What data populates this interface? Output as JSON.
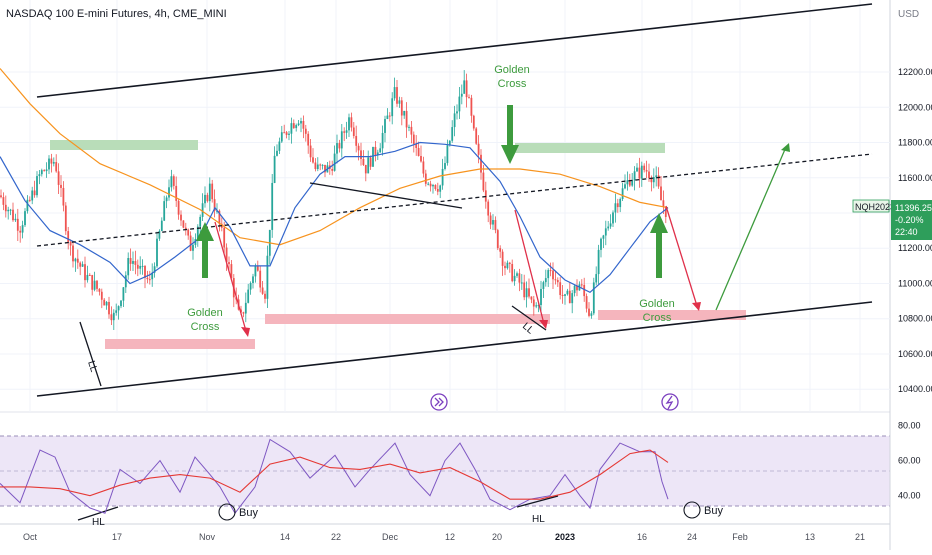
{
  "chart_data": {
    "type": "candlestick",
    "title": "NASDAQ 100 E-mini Futures, 4h, CME_MINI",
    "currency": "USD",
    "symbol": "NQH2023",
    "last_price": "11396.25",
    "change_pct": "-0.20%",
    "countdown": "22:40",
    "price_range": [
      10350,
      12450
    ],
    "price_ticks": [
      10400,
      10600,
      10800,
      11000,
      11200,
      11400,
      11600,
      11800,
      12000,
      12200
    ],
    "price_tick_labels": [
      "10400.00",
      "10600.00",
      "10800.00",
      "11000.00",
      "11200.00",
      "11400.00",
      "11600.00",
      "11800.00",
      "12000.00",
      "12200.00"
    ],
    "x_tick_labels": [
      "Oct",
      "17",
      "Nov",
      "14",
      "22",
      "Dec",
      "12",
      "20",
      "2023",
      "16",
      "24",
      "Feb",
      "13",
      "21"
    ],
    "price_path": [
      [
        0,
        11500
      ],
      [
        20,
        11320
      ],
      [
        40,
        11620
      ],
      [
        55,
        11700
      ],
      [
        70,
        11200
      ],
      [
        85,
        11050
      ],
      [
        100,
        10950
      ],
      [
        115,
        10800
      ],
      [
        130,
        11150
      ],
      [
        150,
        11000
      ],
      [
        170,
        11600
      ],
      [
        190,
        11200
      ],
      [
        210,
        11550
      ],
      [
        225,
        11200
      ],
      [
        240,
        10780
      ],
      [
        255,
        11100
      ],
      [
        265,
        10950
      ],
      [
        275,
        11750
      ],
      [
        290,
        11900
      ],
      [
        300,
        11950
      ],
      [
        315,
        11650
      ],
      [
        330,
        11650
      ],
      [
        350,
        11950
      ],
      [
        365,
        11650
      ],
      [
        380,
        11800
      ],
      [
        395,
        12080
      ],
      [
        410,
        11850
      ],
      [
        425,
        11600
      ],
      [
        440,
        11550
      ],
      [
        455,
        11950
      ],
      [
        465,
        12150
      ],
      [
        475,
        11800
      ],
      [
        490,
        11380
      ],
      [
        505,
        11100
      ],
      [
        520,
        11000
      ],
      [
        535,
        10850
      ],
      [
        550,
        11100
      ],
      [
        565,
        10900
      ],
      [
        580,
        11000
      ],
      [
        590,
        10820
      ],
      [
        600,
        11200
      ],
      [
        615,
        11450
      ],
      [
        630,
        11600
      ],
      [
        645,
        11650
      ],
      [
        655,
        11600
      ],
      [
        662,
        11450
      ],
      [
        668,
        11396
      ]
    ],
    "series": [
      {
        "name": "",
        "color": "#f7931e",
        "points": [
          [
            0,
            12220
          ],
          [
            30,
            12020
          ],
          [
            60,
            11850
          ],
          [
            100,
            11680
          ],
          [
            150,
            11560
          ],
          [
            200,
            11420
          ],
          [
            240,
            11260
          ],
          [
            280,
            11220
          ],
          [
            320,
            11300
          ],
          [
            360,
            11430
          ],
          [
            400,
            11540
          ],
          [
            440,
            11610
          ],
          [
            480,
            11650
          ],
          [
            520,
            11650
          ],
          [
            560,
            11620
          ],
          [
            600,
            11550
          ],
          [
            640,
            11460
          ],
          [
            668,
            11430
          ]
        ]
      },
      {
        "name": "",
        "color": "#3366cc",
        "points": [
          [
            0,
            11720
          ],
          [
            25,
            11470
          ],
          [
            50,
            11300
          ],
          [
            80,
            11220
          ],
          [
            110,
            11120
          ],
          [
            130,
            11000
          ],
          [
            150,
            11050
          ],
          [
            175,
            11150
          ],
          [
            200,
            11260
          ],
          [
            215,
            11430
          ],
          [
            230,
            11320
          ],
          [
            250,
            11100
          ],
          [
            270,
            11100
          ],
          [
            295,
            11430
          ],
          [
            320,
            11620
          ],
          [
            345,
            11720
          ],
          [
            370,
            11720
          ],
          [
            395,
            11750
          ],
          [
            420,
            11800
          ],
          [
            445,
            11790
          ],
          [
            470,
            11770
          ],
          [
            500,
            11580
          ],
          [
            520,
            11380
          ],
          [
            540,
            11150
          ],
          [
            565,
            11020
          ],
          [
            590,
            10950
          ],
          [
            610,
            11050
          ],
          [
            630,
            11200
          ],
          [
            650,
            11350
          ],
          [
            668,
            11430
          ]
        ]
      }
    ],
    "annotations": {
      "golden_cross_1": [
        "Golden",
        "Cross"
      ],
      "golden_cross_2": [
        "Golden",
        "Cross"
      ],
      "golden_cross_3": [
        "Golden",
        "Cross"
      ],
      "ll_1": "LL",
      "ll_2": "LL",
      "hl_1": "HL",
      "hl_2": "HL",
      "buy_1": "Buy",
      "buy_2": "Buy"
    },
    "indicator": {
      "type": "rsi",
      "range": [
        25,
        82
      ],
      "ticks": [
        40,
        60,
        80
      ],
      "tick_labels": [
        "40.00",
        "60.00",
        "80.00"
      ],
      "rsi_path": [
        [
          0,
          47
        ],
        [
          20,
          36
        ],
        [
          40,
          66
        ],
        [
          55,
          62
        ],
        [
          70,
          42
        ],
        [
          90,
          33
        ],
        [
          105,
          30
        ],
        [
          120,
          55
        ],
        [
          140,
          47
        ],
        [
          160,
          60
        ],
        [
          180,
          42
        ],
        [
          195,
          62
        ],
        [
          210,
          52
        ],
        [
          220,
          45
        ],
        [
          235,
          30
        ],
        [
          255,
          45
        ],
        [
          270,
          72
        ],
        [
          290,
          65
        ],
        [
          310,
          50
        ],
        [
          335,
          63
        ],
        [
          355,
          45
        ],
        [
          370,
          55
        ],
        [
          395,
          70
        ],
        [
          410,
          52
        ],
        [
          430,
          40
        ],
        [
          445,
          60
        ],
        [
          460,
          70
        ],
        [
          475,
          55
        ],
        [
          490,
          38
        ],
        [
          510,
          32
        ],
        [
          530,
          38
        ],
        [
          550,
          40
        ],
        [
          565,
          52
        ],
        [
          580,
          40
        ],
        [
          590,
          33
        ],
        [
          600,
          55
        ],
        [
          620,
          70
        ],
        [
          640,
          65
        ],
        [
          655,
          65
        ],
        [
          662,
          48
        ],
        [
          668,
          38
        ]
      ],
      "signal_path": [
        [
          0,
          45
        ],
        [
          30,
          45
        ],
        [
          60,
          44
        ],
        [
          90,
          40
        ],
        [
          120,
          46
        ],
        [
          150,
          50
        ],
        [
          180,
          52
        ],
        [
          210,
          50
        ],
        [
          240,
          42
        ],
        [
          270,
          58
        ],
        [
          300,
          62
        ],
        [
          330,
          56
        ],
        [
          360,
          55
        ],
        [
          390,
          58
        ],
        [
          420,
          53
        ],
        [
          450,
          56
        ],
        [
          480,
          48
        ],
        [
          510,
          38
        ],
        [
          540,
          38
        ],
        [
          570,
          42
        ],
        [
          600,
          52
        ],
        [
          630,
          64
        ],
        [
          650,
          66
        ],
        [
          668,
          59
        ]
      ]
    }
  }
}
